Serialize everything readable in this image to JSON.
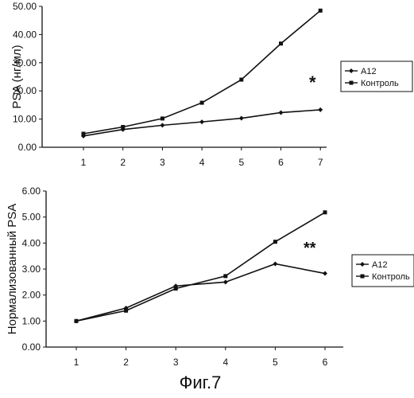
{
  "figure_caption": "Фиг.7",
  "chart_data": [
    {
      "type": "line",
      "title": "",
      "xlabel": "",
      "ylabel": "PSA (нг/мл)",
      "categories": [
        "1",
        "2",
        "3",
        "4",
        "5",
        "6",
        "7"
      ],
      "ylim": [
        0,
        50
      ],
      "yticks": [
        "0.00",
        "10.00",
        "20.00",
        "30.00",
        "40.00",
        "50.00"
      ],
      "legend_position": "right",
      "series": [
        {
          "name": "A12",
          "marker": "diamond",
          "values": [
            4.0,
            6.3,
            7.8,
            9.0,
            10.3,
            12.3,
            13.3
          ]
        },
        {
          "name": "Контроль",
          "marker": "square",
          "values": [
            4.8,
            7.2,
            10.2,
            15.8,
            24.0,
            36.8,
            48.5
          ]
        }
      ],
      "annotation": "*"
    },
    {
      "type": "line",
      "title": "",
      "xlabel": "",
      "ylabel": "Нормализованный PSA",
      "categories": [
        "1",
        "2",
        "3",
        "4",
        "5",
        "6"
      ],
      "ylim": [
        0,
        6
      ],
      "yticks": [
        "0.00",
        "1.00",
        "2.00",
        "3.00",
        "4.00",
        "5.00",
        "6.00"
      ],
      "legend_position": "right",
      "series": [
        {
          "name": "A12",
          "marker": "diamond",
          "values": [
            1.0,
            1.5,
            2.35,
            2.5,
            3.2,
            2.83
          ]
        },
        {
          "name": "Контроль",
          "marker": "square",
          "values": [
            1.0,
            1.4,
            2.25,
            2.73,
            4.05,
            5.18
          ]
        }
      ],
      "annotation": "**"
    }
  ]
}
